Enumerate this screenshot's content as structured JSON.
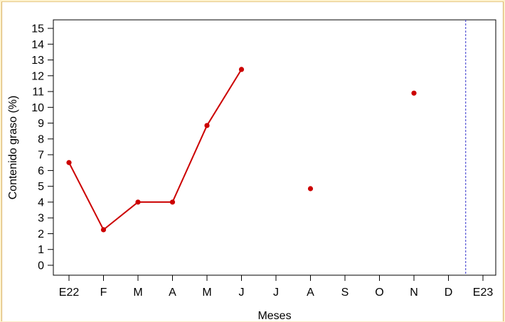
{
  "chart_data": {
    "type": "line",
    "xlabel": "Meses",
    "ylabel": "Contenido graso (%)",
    "categories": [
      "E22",
      "F",
      "M",
      "A",
      "M",
      "J",
      "J",
      "A",
      "S",
      "O",
      "N",
      "D",
      "E23"
    ],
    "ylim": [
      0,
      15
    ],
    "yticks": [
      0,
      1,
      2,
      3,
      4,
      5,
      6,
      7,
      8,
      9,
      10,
      11,
      12,
      13,
      14,
      15
    ],
    "grid": false,
    "series": [
      {
        "color": "#cc0000",
        "values": [
          6.5,
          2.25,
          4.0,
          4.0,
          8.85,
          12.4,
          null,
          4.85,
          null,
          null,
          10.9,
          null,
          null
        ]
      }
    ],
    "reference_line": {
      "x_between": [
        "D",
        "E23"
      ],
      "style": "dashed",
      "color": "#3333cc"
    }
  }
}
